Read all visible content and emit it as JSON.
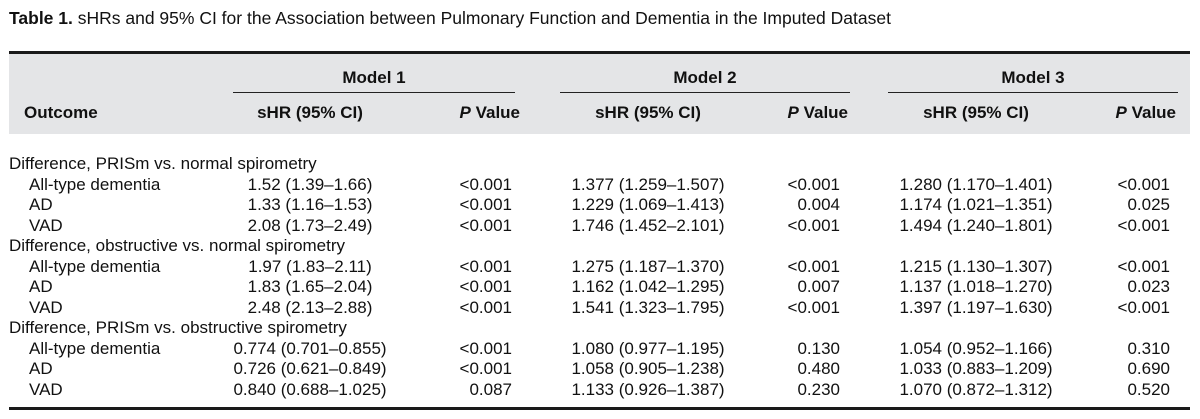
{
  "caption": {
    "label": "Table 1.",
    "text": " sHRs and 95% CI for the Association between Pulmonary Function and Dementia in the Imputed Dataset"
  },
  "header": {
    "outcome": "Outcome",
    "models": [
      "Model 1",
      "Model 2",
      "Model 3"
    ],
    "shr_label": "sHR (95% CI)",
    "p_label_italic": "P",
    "p_label_rest": " Value"
  },
  "sections": [
    {
      "title": "Difference, PRISm vs. normal spirometry",
      "rows": [
        {
          "outcome": "All-type dementia",
          "m1": "1.52 (1.39–1.66)",
          "p1": "<0.001",
          "m2": "1.377 (1.259–1.507)",
          "p2": "<0.001",
          "m3": "1.280 (1.170–1.401)",
          "p3": "<0.001"
        },
        {
          "outcome": "AD",
          "m1": "1.33 (1.16–1.53)",
          "p1": "<0.001",
          "m2": "1.229 (1.069–1.413)",
          "p2": "0.004",
          "m3": "1.174 (1.021–1.351)",
          "p3": "0.025"
        },
        {
          "outcome": "VAD",
          "m1": "2.08 (1.73–2.49)",
          "p1": "<0.001",
          "m2": "1.746 (1.452–2.101)",
          "p2": "<0.001",
          "m3": "1.494 (1.240–1.801)",
          "p3": "<0.001"
        }
      ]
    },
    {
      "title": "Difference, obstructive vs. normal spirometry",
      "rows": [
        {
          "outcome": "All-type dementia",
          "m1": "1.97 (1.83–2.11)",
          "p1": "<0.001",
          "m2": "1.275 (1.187–1.370)",
          "p2": "<0.001",
          "m3": "1.215 (1.130–1.307)",
          "p3": "<0.001"
        },
        {
          "outcome": "AD",
          "m1": "1.83 (1.65–2.04)",
          "p1": "<0.001",
          "m2": "1.162 (1.042–1.295)",
          "p2": "0.007",
          "m3": "1.137 (1.018–1.270)",
          "p3": "0.023"
        },
        {
          "outcome": "VAD",
          "m1": "2.48 (2.13–2.88)",
          "p1": "<0.001",
          "m2": "1.541 (1.323–1.795)",
          "p2": "<0.001",
          "m3": "1.397 (1.197–1.630)",
          "p3": "<0.001"
        }
      ]
    },
    {
      "title": "Difference, PRISm vs. obstructive spirometry",
      "rows": [
        {
          "outcome": "All-type dementia",
          "m1": "0.774 (0.701–0.855)",
          "p1": "<0.001",
          "m2": "1.080 (0.977–1.195)",
          "p2": "0.130",
          "m3": "1.054 (0.952–1.166)",
          "p3": "0.310"
        },
        {
          "outcome": "AD",
          "m1": "0.726 (0.621–0.849)",
          "p1": "<0.001",
          "m2": "1.058 (0.905–1.238)",
          "p2": "0.480",
          "m3": "1.033 (0.883–1.209)",
          "p3": "0.690"
        },
        {
          "outcome": "VAD",
          "m1": "0.840 (0.688–1.025)",
          "p1": "0.087",
          "m2": "1.133 (0.926–1.387)",
          "p2": "0.230",
          "m3": "1.070 (0.872–1.312)",
          "p3": "0.520"
        }
      ]
    }
  ]
}
